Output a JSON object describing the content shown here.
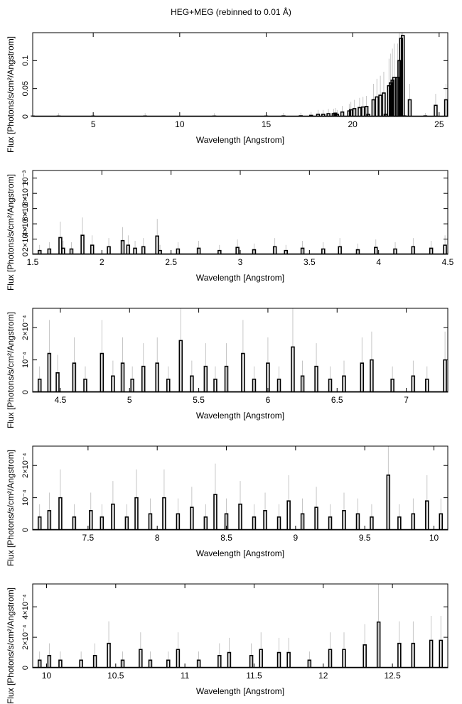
{
  "title": "HEG+MEG (rebinned to 0.01 Å)",
  "colors": {
    "frame": "#000000",
    "step": "#000000",
    "error_bar": "#b8b8b8"
  },
  "chart_data": [
    {
      "type": "line",
      "xlabel": "Wavelength [Angstrom]",
      "ylabel": "Flux [Photons/s/cm²/Angstrom]",
      "xlim": [
        1.5,
        25.5
      ],
      "ylim": [
        0,
        0.15
      ],
      "xticks": [
        5,
        10,
        15,
        20,
        25
      ],
      "xtick_labels": [
        "5",
        "10",
        "15",
        "20",
        "25"
      ],
      "yticks": [
        0,
        0.05,
        0.1
      ],
      "ytick_labels": [
        "0",
        "0.05",
        "0.1"
      ],
      "series": [
        {
          "x": [
            1.5,
            3,
            5,
            8,
            12,
            15,
            16,
            17,
            17.6,
            18.0,
            18.3,
            18.6,
            18.9,
            19.0,
            19.1,
            19.4,
            19.8,
            19.9,
            20.1,
            20.4,
            20.6,
            20.8,
            20.9,
            21.2,
            21.4,
            21.6,
            21.8,
            21.9,
            22.1,
            22.2,
            22.3,
            22.4,
            22.6,
            22.7,
            22.8,
            22.9,
            23.0,
            23.3,
            24.2,
            24.8,
            25.4
          ],
          "y": [
            0.0008,
            0.0008,
            0.0008,
            0.0008,
            0.0008,
            0.0008,
            0.001,
            0.0012,
            0.002,
            0.004,
            0.004,
            0.005,
            0.005,
            0.006,
            0.004,
            0.008,
            0.01,
            0.012,
            0.014,
            0.016,
            0.017,
            0.018,
            0.004,
            0.03,
            0.035,
            0.038,
            0.042,
            0.004,
            0.055,
            0.06,
            0.065,
            0.07,
            0.07,
            0.1,
            0.14,
            0.145,
            0.001,
            0.03,
            0.001,
            0.02,
            0.03
          ]
        }
      ]
    },
    {
      "type": "line",
      "xlabel": "Wavelength [Angstrom]",
      "ylabel": "Flux [Photons/s/cm²/Angstrom]",
      "xlim": [
        1.5,
        4.5
      ],
      "ylim": [
        0,
        0.0011
      ],
      "xticks": [
        1.5,
        2,
        2.5,
        3,
        3.5,
        4,
        4.5
      ],
      "xtick_labels": [
        "1.5",
        "2",
        "2.5",
        "3",
        "3.5",
        "4",
        "4.5"
      ],
      "yticks": [
        0,
        0.0002,
        0.0004,
        0.0006,
        0.0008,
        0.001
      ],
      "ytick_labels": [
        "0",
        "2×10⁻⁴",
        "4×10⁻⁴",
        "6×10⁻⁴",
        "8×10⁻⁴",
        "10⁻³"
      ],
      "series": [
        {
          "x": [
            1.55,
            1.62,
            1.7,
            1.72,
            1.78,
            1.86,
            1.93,
            2.05,
            2.15,
            2.19,
            2.24,
            2.3,
            2.4,
            2.42,
            2.55,
            2.7,
            2.85,
            2.98,
            3.1,
            3.25,
            3.33,
            3.45,
            3.6,
            3.72,
            3.85,
            3.98,
            4.12,
            4.25,
            4.38,
            4.48
          ],
          "y": [
            5e-05,
            7e-05,
            0.00022,
            8e-05,
            7e-05,
            0.00025,
            0.00012,
            0.0001,
            0.00018,
            0.00012,
            8e-05,
            0.0001,
            0.00024,
            5e-05,
            7e-05,
            8e-05,
            5e-05,
            9e-05,
            6e-05,
            0.0001,
            5e-05,
            8e-05,
            7e-05,
            0.0001,
            6e-05,
            9e-05,
            7e-05,
            0.0001,
            8e-05,
            0.00012
          ]
        }
      ]
    },
    {
      "type": "line",
      "xlabel": "Wavelength [Angstrom]",
      "ylabel": "Flux [Photons/s/cm²/Angstrom]",
      "xlim": [
        4.3,
        7.3
      ],
      "ylim": [
        0,
        0.00026
      ],
      "xticks": [
        4.5,
        5,
        5.5,
        6,
        6.5,
        7
      ],
      "xtick_labels": [
        "4.5",
        "5",
        "5.5",
        "6",
        "6.5",
        "7"
      ],
      "yticks": [
        0,
        0.0001,
        0.0002
      ],
      "ytick_labels": [
        "0",
        "10⁻⁴",
        "2×10⁻⁴"
      ],
      "series": [
        {
          "x": [
            4.35,
            4.42,
            4.48,
            4.6,
            4.68,
            4.8,
            4.88,
            4.95,
            5.02,
            5.1,
            5.2,
            5.28,
            5.37,
            5.45,
            5.55,
            5.62,
            5.7,
            5.82,
            5.9,
            6.0,
            6.08,
            6.18,
            6.25,
            6.35,
            6.45,
            6.55,
            6.68,
            6.75,
            6.9,
            7.05,
            7.15,
            7.28
          ],
          "y": [
            4e-05,
            0.00012,
            6e-05,
            9e-05,
            4e-05,
            0.00012,
            5e-05,
            9e-05,
            4e-05,
            8e-05,
            9e-05,
            4e-05,
            0.00016,
            5e-05,
            8e-05,
            4e-05,
            8e-05,
            0.00012,
            4e-05,
            9e-05,
            4e-05,
            0.00014,
            5e-05,
            8e-05,
            4e-05,
            5e-05,
            9e-05,
            0.0001,
            4e-05,
            5e-05,
            4e-05,
            0.0001
          ]
        }
      ]
    },
    {
      "type": "line",
      "xlabel": "Wavelength [Angstrom]",
      "ylabel": "Flux [Photons/s/cm²/Angstrom]",
      "xlim": [
        7.1,
        10.1
      ],
      "ylim": [
        0,
        0.00026
      ],
      "xticks": [
        7.5,
        8,
        8.5,
        9,
        9.5,
        10
      ],
      "xtick_labels": [
        "7.5",
        "8",
        "8.5",
        "9",
        "9.5",
        "10"
      ],
      "yticks": [
        0,
        0.0001,
        0.0002
      ],
      "ytick_labels": [
        "0",
        "10⁻⁴",
        "2×10⁻⁴"
      ],
      "series": [
        {
          "x": [
            7.15,
            7.22,
            7.3,
            7.4,
            7.52,
            7.6,
            7.68,
            7.78,
            7.85,
            7.95,
            8.05,
            8.15,
            8.25,
            8.35,
            8.42,
            8.5,
            8.6,
            8.7,
            8.78,
            8.88,
            8.95,
            9.05,
            9.15,
            9.25,
            9.35,
            9.45,
            9.55,
            9.67,
            9.75,
            9.85,
            9.95,
            10.05
          ],
          "y": [
            4e-05,
            6e-05,
            0.0001,
            4e-05,
            6e-05,
            4e-05,
            8e-05,
            4e-05,
            0.0001,
            5e-05,
            0.0001,
            5e-05,
            7e-05,
            4e-05,
            0.00011,
            5e-05,
            8e-05,
            4e-05,
            6e-05,
            4e-05,
            9e-05,
            5e-05,
            7e-05,
            4e-05,
            6e-05,
            5e-05,
            4e-05,
            0.00017,
            4e-05,
            5e-05,
            9e-05,
            5e-05
          ]
        }
      ]
    },
    {
      "type": "line",
      "xlabel": "Wavelength [Angstrom]",
      "ylabel": "Flux [Photons/s/cm²/Angstrom]",
      "xlim": [
        9.9,
        12.9
      ],
      "ylim": [
        0,
        0.00055
      ],
      "xticks": [
        10,
        10.5,
        11,
        11.5,
        12,
        12.5
      ],
      "xtick_labels": [
        "10",
        "10.5",
        "11",
        "11.5",
        "12",
        "12.5"
      ],
      "yticks": [
        0,
        0.0002,
        0.0004
      ],
      "ytick_labels": [
        "0",
        "2×10⁻⁴",
        "4×10⁻⁴"
      ],
      "series": [
        {
          "x": [
            9.95,
            10.02,
            10.1,
            10.25,
            10.35,
            10.45,
            10.55,
            10.68,
            10.75,
            10.88,
            10.95,
            11.1,
            11.25,
            11.32,
            11.48,
            11.55,
            11.68,
            11.75,
            11.9,
            12.05,
            12.15,
            12.3,
            12.4,
            12.55,
            12.65,
            12.78,
            12.85
          ],
          "y": [
            5e-05,
            8e-05,
            5e-05,
            5e-05,
            8e-05,
            0.00016,
            5e-05,
            0.00012,
            5e-05,
            5e-05,
            0.00012,
            5e-05,
            8e-05,
            0.0001,
            8e-05,
            0.00012,
            0.0001,
            0.0001,
            5e-05,
            0.00012,
            0.00012,
            0.00015,
            0.0003,
            0.00016,
            0.00016,
            0.00018,
            0.00018
          ]
        }
      ]
    }
  ]
}
